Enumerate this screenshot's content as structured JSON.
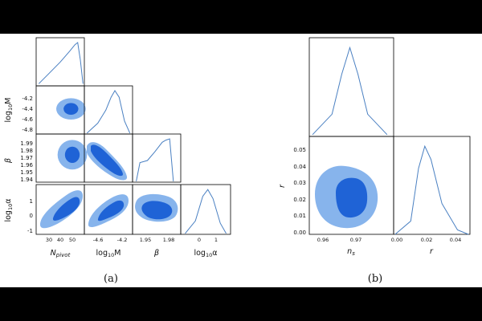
{
  "colors": {
    "outer": "#87b4ec",
    "inner": "#1f63d6",
    "line": "#4a80c2",
    "bg": "#ffffff",
    "frame": "#000000"
  },
  "panel_a": {
    "caption": "(a)",
    "params": [
      "Npivot",
      "log10M",
      "beta",
      "log10alpha"
    ],
    "axis_labels": {
      "Npivot": "N_pivot",
      "log10M": "log10M",
      "beta": "β",
      "log10alpha": "log10α"
    },
    "ranges": {
      "Npivot": [
        20,
        56
      ],
      "log10M": [
        -4.95,
        -4.05
      ],
      "beta": [
        1.935,
        2.0
      ],
      "log10alpha": [
        -1.3,
        2.1
      ]
    },
    "ticks": {
      "Npivot": [
        "30",
        "40",
        "50"
      ],
      "log10M": [
        "-4.6",
        "-4.2"
      ],
      "beta": [
        "1.95",
        "1.98"
      ],
      "log10alpha": [
        "0",
        "1"
      ],
      "log10M_y": [
        "-4.2",
        "-4.4",
        "-4.6",
        "-4.8"
      ],
      "beta_y": [
        "1.99",
        "1.98",
        "1.97",
        "1.96",
        "1.95",
        "1.94"
      ],
      "log10alpha_y": [
        "1",
        "0",
        "-1"
      ]
    }
  },
  "panel_b": {
    "caption": "(b)",
    "params": [
      "ns",
      "r"
    ],
    "axis_labels": {
      "ns": "n_s",
      "r": "r"
    },
    "ranges": {
      "ns": [
        0.955,
        0.981
      ],
      "r": [
        -0.001,
        0.048
      ]
    },
    "ticks": {
      "ns": [
        "0.96",
        "0.97"
      ],
      "r": [
        "0.00",
        "0.02",
        "0.04"
      ],
      "r_y": [
        "0.05",
        "0.04",
        "0.03",
        "0.02",
        "0.01",
        "0.00"
      ]
    }
  },
  "chart_data": [
    {
      "type": "triangle",
      "title": "",
      "parameters": [
        "N_pivot",
        "log10 M",
        "beta",
        "log10 alpha"
      ],
      "marginals": [
        {
          "param": "N_pivot",
          "x": [
            22,
            30,
            38,
            45,
            49,
            51,
            53,
            55
          ],
          "density": [
            0.05,
            0.3,
            0.55,
            0.8,
            0.95,
            1.0,
            0.6,
            0.05
          ]
        },
        {
          "param": "log10 M",
          "x": [
            -4.9,
            -4.7,
            -4.55,
            -4.45,
            -4.38,
            -4.3,
            -4.2,
            -4.1
          ],
          "density": [
            0.02,
            0.25,
            0.55,
            0.85,
            1.0,
            0.85,
            0.3,
            0.02
          ]
        },
        {
          "param": "beta",
          "x": [
            1.94,
            1.945,
            1.955,
            1.965,
            1.975,
            1.98,
            1.985,
            1.99
          ],
          "density": [
            0.02,
            0.45,
            0.5,
            0.7,
            0.92,
            0.97,
            1.0,
            0.02
          ]
        },
        {
          "param": "log10 alpha",
          "x": [
            -1.0,
            -0.3,
            0.2,
            0.55,
            0.9,
            1.4,
            1.8
          ],
          "density": [
            0.02,
            0.3,
            0.85,
            1.0,
            0.8,
            0.25,
            0.02
          ]
        }
      ],
      "contours": [
        {
          "x": "N_pivot",
          "y": "log10 M",
          "center": [
            46,
            -4.48
          ],
          "inner_sd": [
            5.5,
            0.11
          ],
          "outer_sd": [
            11,
            0.2
          ]
        },
        {
          "x": "N_pivot",
          "y": "beta",
          "center": [
            47,
            1.972
          ],
          "inner_sd": [
            5.5,
            0.011
          ],
          "outer_sd": [
            11,
            0.02
          ]
        },
        {
          "x": "log10 M",
          "y": "beta",
          "center": [
            -4.45,
            1.968
          ],
          "correlation": "negative"
        },
        {
          "x": "N_pivot",
          "y": "log10 alpha",
          "center": [
            45,
            0.4
          ],
          "correlation": "positive"
        },
        {
          "x": "log10 M",
          "y": "log10 alpha",
          "center": [
            -4.42,
            0.45
          ],
          "correlation": "positive"
        },
        {
          "x": "beta",
          "y": "log10 alpha",
          "center": [
            1.965,
            0.25
          ],
          "correlation": "weak"
        }
      ]
    },
    {
      "type": "triangle",
      "title": "",
      "parameters": [
        "n_s",
        "r"
      ],
      "marginals": [
        {
          "param": "n_s",
          "x": [
            0.956,
            0.962,
            0.965,
            0.9675,
            0.97,
            0.973,
            0.979
          ],
          "density": [
            0.02,
            0.25,
            0.7,
            1.0,
            0.7,
            0.25,
            0.02
          ]
        },
        {
          "param": "r",
          "x": [
            0.0,
            0.01,
            0.015,
            0.019,
            0.023,
            0.03,
            0.04,
            0.047
          ],
          "density": [
            0.0,
            0.15,
            0.75,
            1.0,
            0.85,
            0.35,
            0.05,
            0.0
          ]
        }
      ],
      "contours": [
        {
          "x": "n_s",
          "y": "r",
          "center": [
            0.9675,
            0.019
          ],
          "inner_sd": [
            0.0025,
            0.007
          ],
          "outer_sd": [
            0.005,
            0.012
          ]
        }
      ]
    }
  ]
}
